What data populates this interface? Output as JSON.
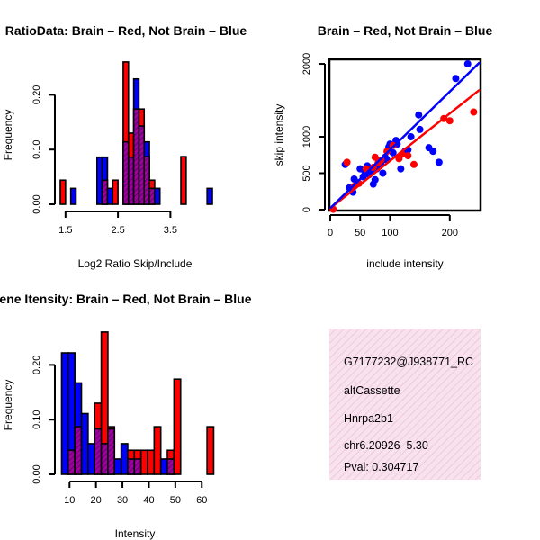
{
  "colors": {
    "red": "#ff0000",
    "blue": "#0000ff",
    "purple": "#a000a0",
    "hatch": "#3a0050",
    "panel_bg": "#f8e2ee",
    "panel_stripe": "#f0c8dc",
    "pval": "#b00000"
  },
  "chart_data": [
    {
      "type": "histogram",
      "title": "RatioData: Brain – Red, Not Brain – Blue",
      "xlabel": "Log2 Ratio Skip/Include",
      "ylabel": "Frequency",
      "xlim": [
        1.4,
        4.3
      ],
      "ylim": [
        0,
        0.25
      ],
      "xticks": [
        1.5,
        2.5,
        3.5
      ],
      "xtick_labels": [
        "1.5",
        "2.5",
        "3.5"
      ],
      "yticks": [
        0.0,
        0.1,
        0.2
      ],
      "ytick_labels": [
        "0.00",
        "0.10",
        "0.20"
      ],
      "bin_width": 0.1,
      "bin_starts": [
        1.4,
        1.5,
        1.6,
        1.7,
        1.8,
        1.9,
        2.0,
        2.1,
        2.2,
        2.3,
        2.4,
        2.5,
        2.6,
        2.7,
        2.8,
        2.9,
        3.0,
        3.1,
        3.2,
        3.3,
        3.4,
        3.5,
        3.6,
        3.7,
        3.8,
        3.9,
        4.0,
        4.1,
        4.2
      ],
      "series": [
        {
          "name": "Brain",
          "color": "red",
          "values": [
            0.044,
            0,
            0,
            0,
            0,
            0,
            0,
            0,
            0.044,
            0,
            0.044,
            0,
            0.26,
            0.13,
            0.174,
            0.174,
            0.087,
            0.044,
            0,
            0,
            0,
            0,
            0,
            0.087,
            0,
            0,
            0,
            0,
            0
          ]
        },
        {
          "name": "Not Brain",
          "color": "blue",
          "values": [
            0,
            0,
            0.029,
            0,
            0,
            0,
            0,
            0.086,
            0.086,
            0.029,
            0,
            0,
            0.114,
            0.086,
            0.229,
            0.143,
            0.114,
            0.029,
            0.029,
            0,
            0,
            0,
            0,
            0,
            0,
            0,
            0,
            0,
            0.029
          ]
        }
      ]
    },
    {
      "type": "scatter",
      "title": "Brain – Red, Not Brain – Blue",
      "xlabel": "include intensity",
      "ylabel": "skip intensity",
      "xlim": [
        0,
        250
      ],
      "ylim": [
        0,
        2050
      ],
      "xticks": [
        0,
        50,
        100,
        200
      ],
      "xtick_labels": [
        "0",
        "50",
        "100",
        "200"
      ],
      "yticks": [
        0,
        500,
        1000,
        2000
      ],
      "ytick_labels": [
        "0",
        "500",
        "1000",
        "2000"
      ],
      "series": [
        {
          "name": "Brain",
          "color": "red",
          "points": [
            [
              5,
              5
            ],
            [
              40,
              320
            ],
            [
              48,
              360
            ],
            [
              28,
              650
            ],
            [
              60,
              560
            ],
            [
              72,
              580
            ],
            [
              75,
              720
            ],
            [
              80,
              640
            ],
            [
              85,
              680
            ],
            [
              95,
              800
            ],
            [
              105,
              880
            ],
            [
              115,
              700
            ],
            [
              120,
              760
            ],
            [
              130,
              740
            ],
            [
              140,
              620
            ],
            [
              190,
              1250
            ],
            [
              200,
              1220
            ],
            [
              240,
              1340
            ]
          ],
          "fit": {
            "intercept": 20,
            "slope": 6.5
          }
        },
        {
          "name": "Not Brain",
          "color": "blue",
          "points": [
            [
              25,
              620
            ],
            [
              32,
              300
            ],
            [
              38,
              240
            ],
            [
              40,
              420
            ],
            [
              45,
              370
            ],
            [
              50,
              560
            ],
            [
              55,
              450
            ],
            [
              58,
              520
            ],
            [
              62,
              600
            ],
            [
              65,
              480
            ],
            [
              68,
              530
            ],
            [
              72,
              350
            ],
            [
              75,
              410
            ],
            [
              78,
              560
            ],
            [
              80,
              600
            ],
            [
              85,
              650
            ],
            [
              88,
              500
            ],
            [
              92,
              720
            ],
            [
              95,
              680
            ],
            [
              98,
              860
            ],
            [
              100,
              900
            ],
            [
              105,
              780
            ],
            [
              110,
              950
            ],
            [
              112,
              900
            ],
            [
              118,
              560
            ],
            [
              125,
              800
            ],
            [
              130,
              820
            ],
            [
              135,
              1000
            ],
            [
              148,
              1300
            ],
            [
              150,
              1100
            ],
            [
              165,
              850
            ],
            [
              172,
              800
            ],
            [
              182,
              650
            ],
            [
              210,
              1800
            ],
            [
              230,
              2000
            ]
          ],
          "fit": {
            "intercept": 20,
            "slope": 8.0
          }
        }
      ]
    },
    {
      "type": "histogram",
      "title": "Gene Itensity: Brain – Red, Not Brain – Blue",
      "xlabel": "Intensity",
      "ylabel": "Frequency",
      "xlim": [
        6.5,
        64
      ],
      "ylim": [
        0,
        0.25
      ],
      "xticks": [
        10,
        20,
        30,
        40,
        50,
        60
      ],
      "xtick_labels": [
        "10",
        "20",
        "30",
        "40",
        "50",
        "60"
      ],
      "yticks": [
        0.0,
        0.1,
        0.2
      ],
      "ytick_labels": [
        "0.00",
        "0.10",
        "0.20"
      ],
      "bin_width": 2.5,
      "bin_starts": [
        7.0,
        9.5,
        12.0,
        14.5,
        17.0,
        19.5,
        22.0,
        24.5,
        27.0,
        29.5,
        32.0,
        34.5,
        37.0,
        39.5,
        42.0,
        44.5,
        47.0,
        49.5,
        52.0,
        54.5,
        57.0,
        59.5,
        62.0
      ],
      "series": [
        {
          "name": "Brain",
          "color": "red",
          "values": [
            0,
            0.044,
            0.087,
            0,
            0,
            0.13,
            0.26,
            0.087,
            0,
            0,
            0.044,
            0.044,
            0.044,
            0.044,
            0.087,
            0,
            0.044,
            0.174,
            0,
            0,
            0,
            0,
            0.087
          ]
        },
        {
          "name": "Not Brain",
          "color": "blue",
          "values": [
            0.222,
            0.222,
            0.167,
            0.111,
            0.056,
            0.083,
            0.056,
            0.083,
            0.028,
            0.056,
            0.028,
            0.028,
            0,
            0,
            0,
            0.028,
            0.028,
            0,
            0,
            0,
            0,
            0,
            0
          ]
        }
      ]
    }
  ],
  "info_panel": {
    "lines": [
      "G7177232@J938771_RC",
      "altCassette",
      "Hnrpa2b1",
      "chr6.20926–5.30"
    ],
    "pval": "Pval: 0.304717"
  }
}
